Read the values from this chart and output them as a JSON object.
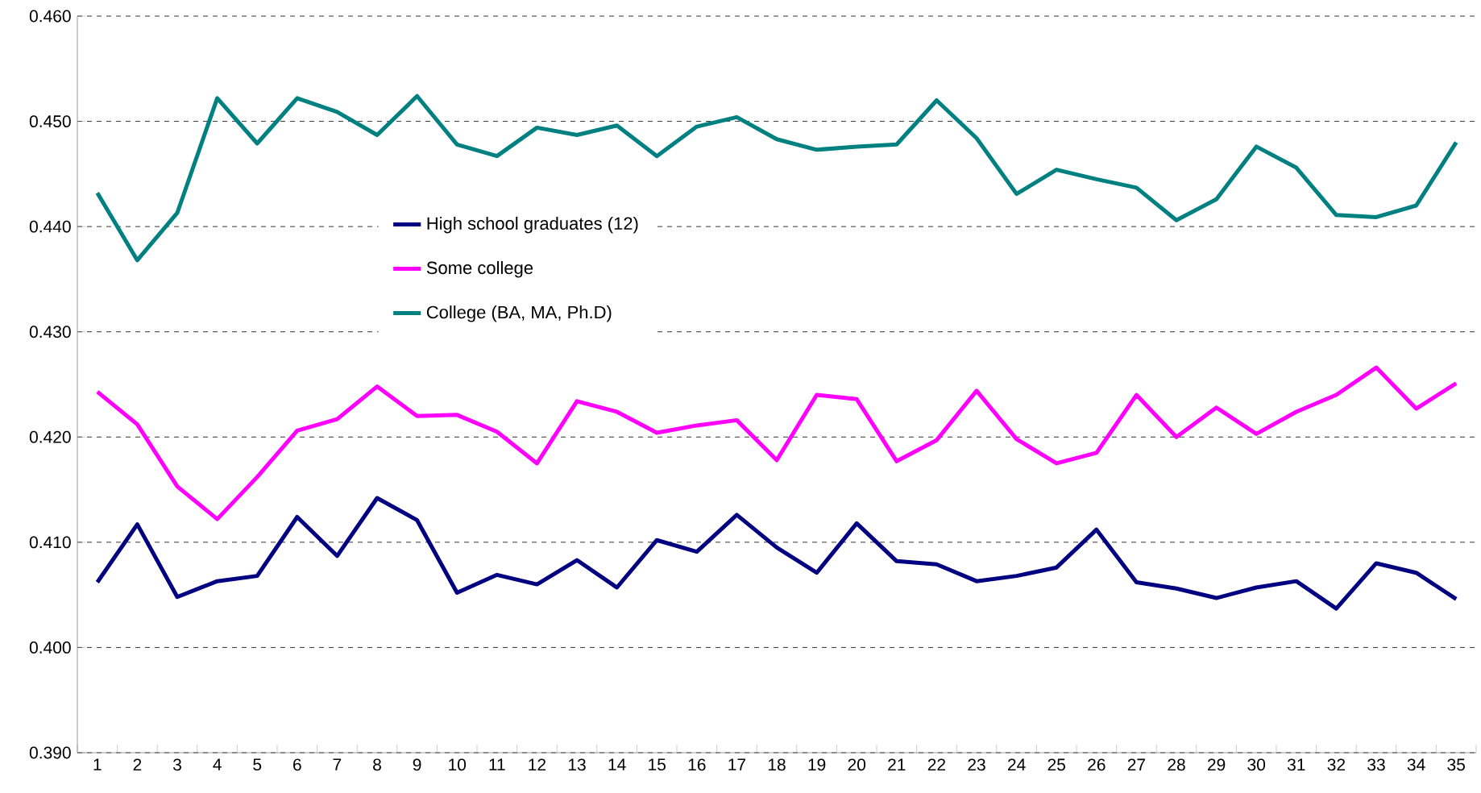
{
  "chart_data": {
    "type": "line",
    "categories": [
      "1",
      "2",
      "3",
      "4",
      "5",
      "6",
      "7",
      "8",
      "9",
      "10",
      "11",
      "12",
      "13",
      "14",
      "15",
      "16",
      "17",
      "18",
      "19",
      "20",
      "21",
      "22",
      "23",
      "24",
      "25",
      "26",
      "27",
      "28",
      "29",
      "30",
      "31",
      "32",
      "33",
      "34",
      "35"
    ],
    "series": [
      {
        "name": "High school graduates (12)",
        "color": "#000080",
        "values": [
          0.4062,
          0.4117,
          0.4048,
          0.4063,
          0.4068,
          0.4124,
          0.4087,
          0.4142,
          0.4121,
          0.4052,
          0.4069,
          0.406,
          0.4083,
          0.4057,
          0.4102,
          0.4091,
          0.4126,
          0.4095,
          0.4071,
          0.4118,
          0.4082,
          0.4079,
          0.4063,
          0.4068,
          0.4076,
          0.4112,
          0.4062,
          0.4056,
          0.4047,
          0.4057,
          0.4063,
          0.4037,
          0.408,
          0.4071,
          0.4046
        ]
      },
      {
        "name": "Some college",
        "color": "#ff00ff",
        "values": [
          0.4243,
          0.4212,
          0.4153,
          0.4122,
          0.4162,
          0.4206,
          0.4217,
          0.4248,
          0.422,
          0.4221,
          0.4205,
          0.4175,
          0.4234,
          0.4224,
          0.4204,
          0.4211,
          0.4216,
          0.4178,
          0.424,
          0.4236,
          0.4177,
          0.4197,
          0.4244,
          0.4198,
          0.4175,
          0.4185,
          0.424,
          0.42,
          0.4228,
          0.4203,
          0.4224,
          0.424,
          0.4266,
          0.4227,
          0.4251
        ]
      },
      {
        "name": "College (BA, MA, Ph.D)",
        "color": "#008080",
        "values": [
          0.4432,
          0.4368,
          0.4413,
          0.4522,
          0.4479,
          0.4522,
          0.4509,
          0.4487,
          0.4524,
          0.4478,
          0.4467,
          0.4494,
          0.4487,
          0.4496,
          0.4467,
          0.4495,
          0.4504,
          0.4483,
          0.4473,
          0.4476,
          0.4478,
          0.452,
          0.4484,
          0.4431,
          0.4454,
          0.4445,
          0.4437,
          0.4406,
          0.4426,
          0.4476,
          0.4456,
          0.4411,
          0.4409,
          0.442,
          0.448
        ]
      }
    ],
    "ylim": [
      0.39,
      0.46
    ],
    "yticks": [
      {
        "value": 0.39,
        "label": "0.390"
      },
      {
        "value": 0.4,
        "label": "0.400"
      },
      {
        "value": 0.41,
        "label": "0.410"
      },
      {
        "value": 0.42,
        "label": "0.420"
      },
      {
        "value": 0.43,
        "label": "0.430"
      },
      {
        "value": 0.44,
        "label": "0.440"
      },
      {
        "value": 0.45,
        "label": "0.450"
      },
      {
        "value": 0.46,
        "label": "0.460"
      }
    ],
    "grid": "y",
    "legend": "top left",
    "marker": "none",
    "line_style": "solid"
  }
}
